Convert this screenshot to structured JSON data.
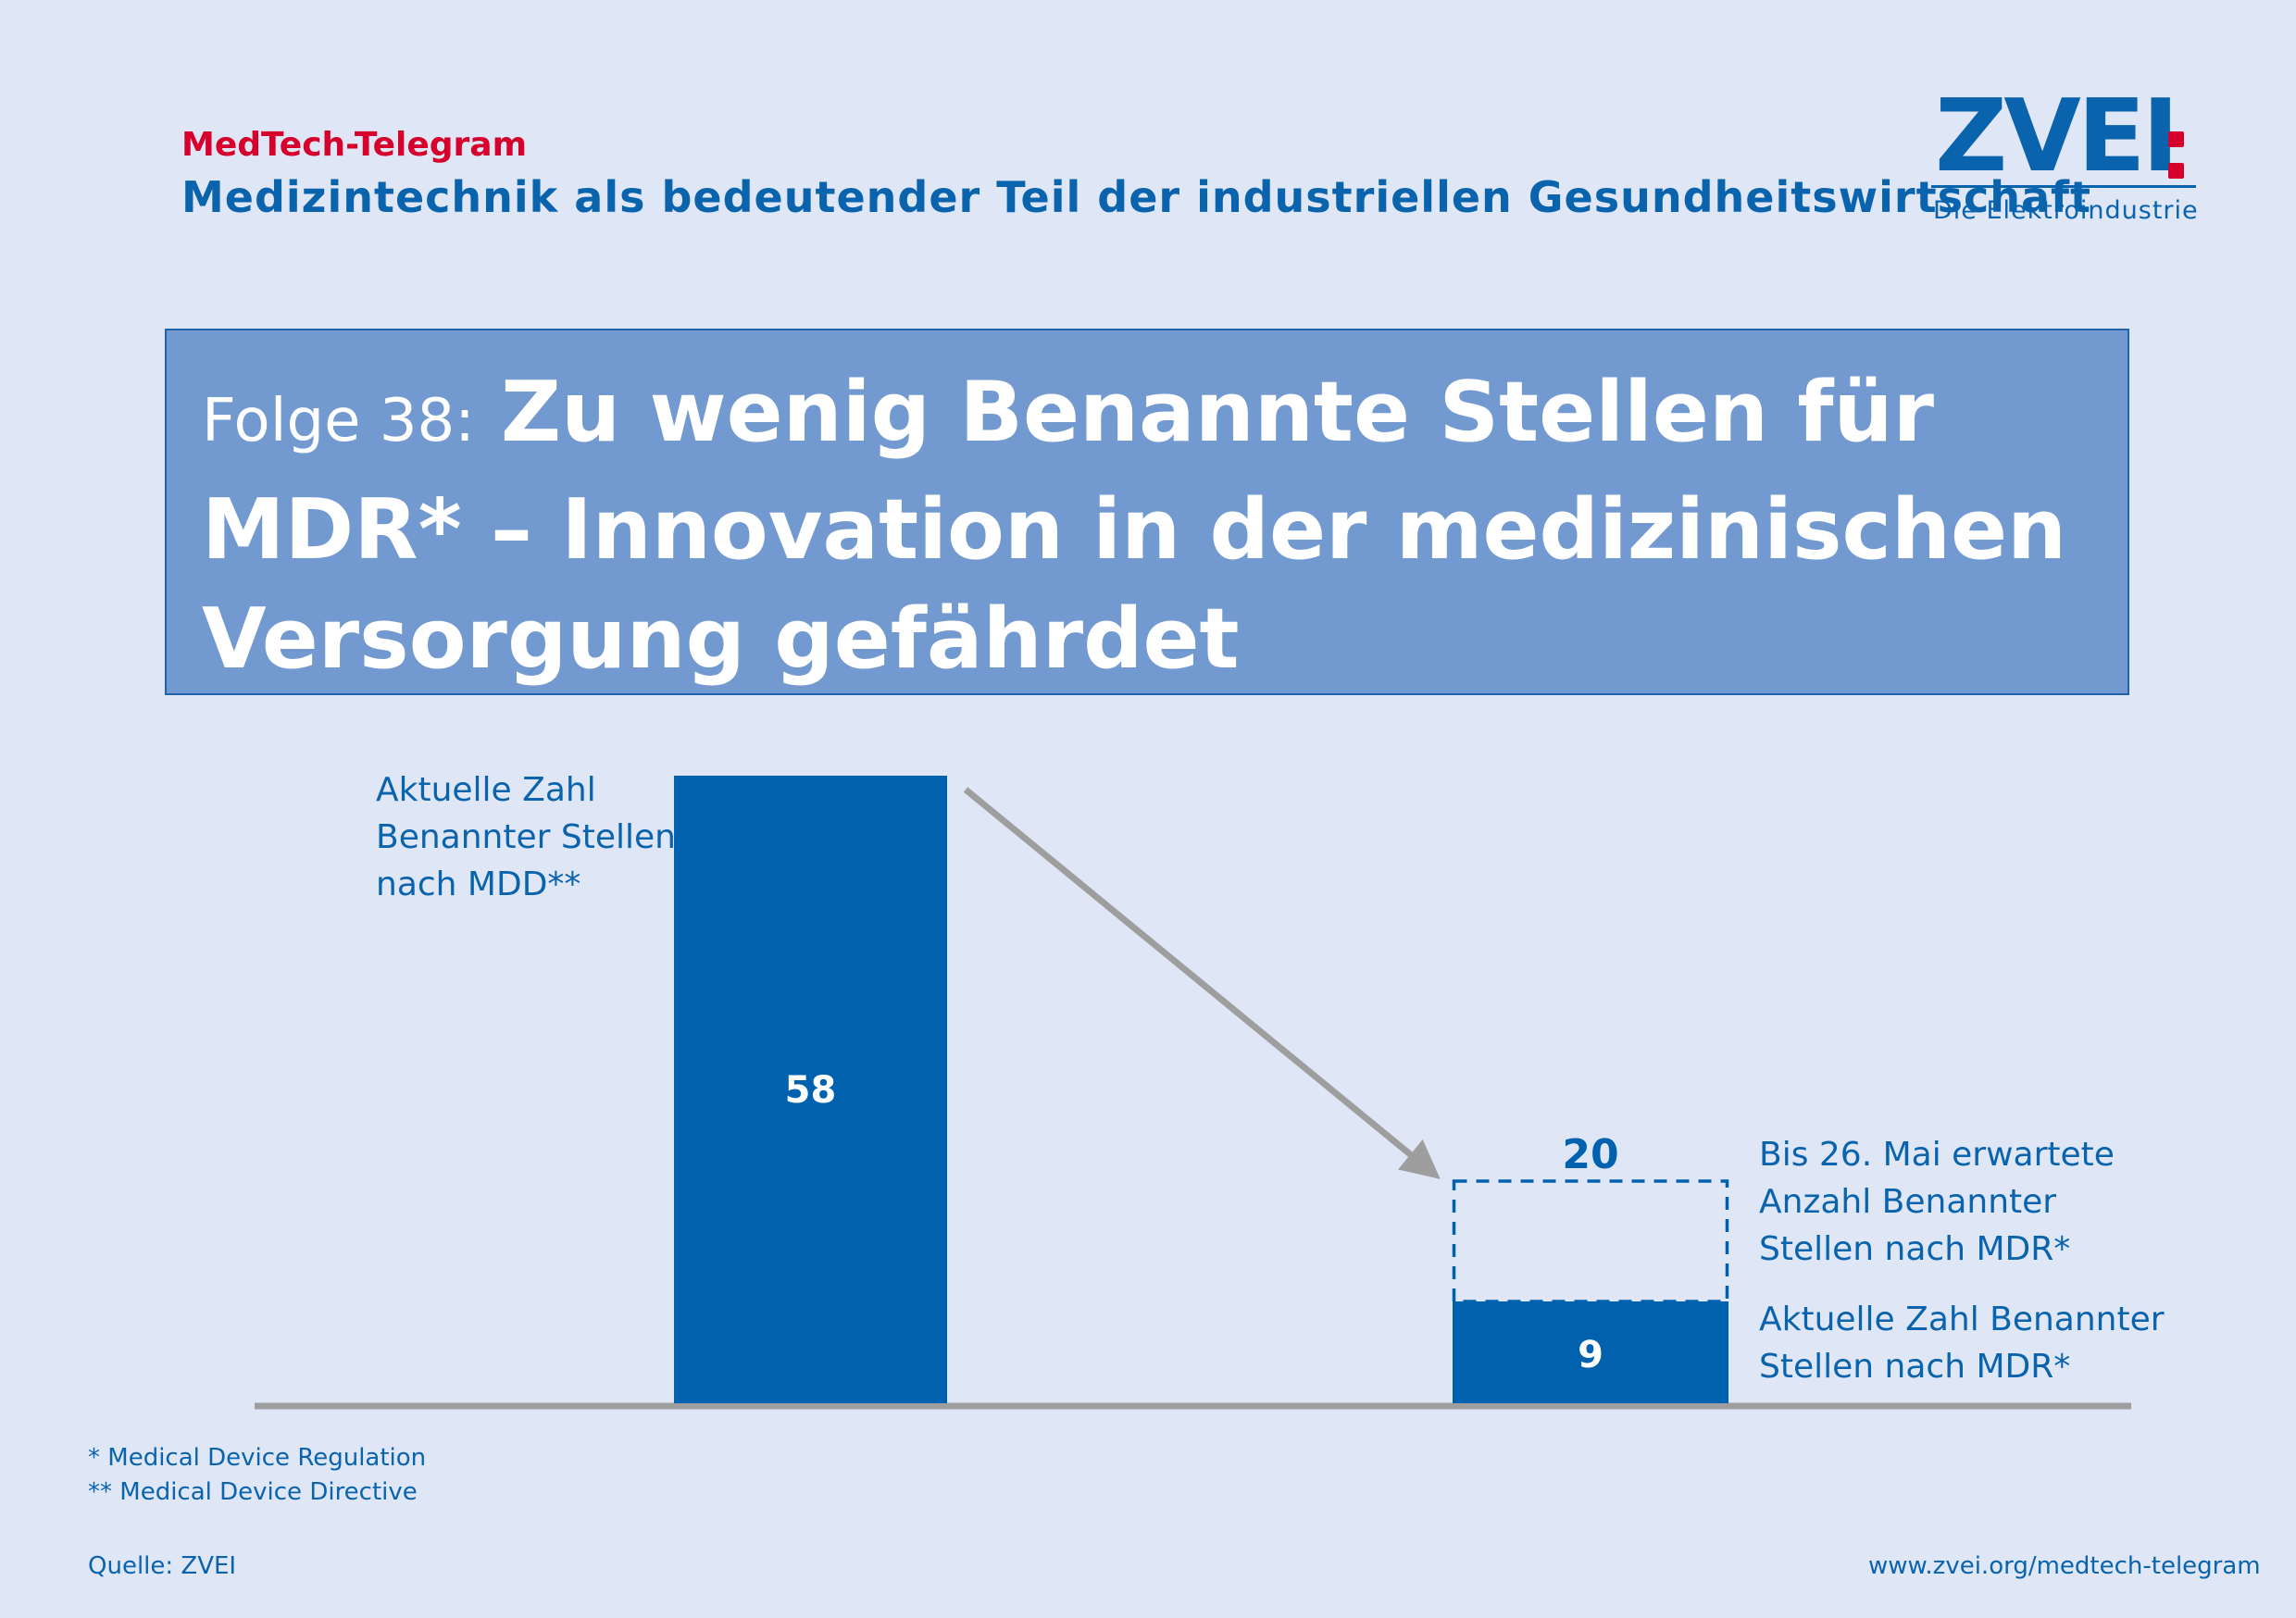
{
  "header": {
    "series_name": "MedTech-Telegram",
    "subtitle": "Medizintechnik als bedeutender Teil der industriellen Gesundheitswirtschaft"
  },
  "logo": {
    "word": "ZVEI",
    "tagline": "Die Elektroindustrie"
  },
  "title_box": {
    "episode": "Folge 38:",
    "headline": "Zu wenig Benannte Stellen für MDR* – Innovation in der medizinischen Versorgung gefährdet"
  },
  "colors": {
    "bar": "#0062ae",
    "title_box": "#7299d0",
    "accent_red": "#d5002b",
    "arrow": "#9e9e9e",
    "baseline": "#9e9e9e",
    "background": "#dfe6f5"
  },
  "chart_data": {
    "type": "bar",
    "title": "",
    "xlabel": "",
    "ylabel": "",
    "ylim": [
      0,
      58
    ],
    "grid": false,
    "bars": [
      {
        "label": "Aktuelle Zahl\nBenannter Stellen\nnach MDD**",
        "value": 58,
        "value_label": "58",
        "style": "solid"
      },
      {
        "label": "Aktuelle Zahl Benannter\nStellen nach MDR*",
        "value": 9,
        "value_label": "9",
        "style": "solid",
        "expected": {
          "label": "Bis 26. Mai erwartete\nAnzahl Benannter\nStellen nach MDR*",
          "value": 20,
          "value_label": "20",
          "style": "dashed"
        }
      }
    ],
    "annotations": [
      "arrow from first bar toward second bar indicating decline"
    ]
  },
  "footer": {
    "footnote_1": "* Medical Device Regulation",
    "footnote_2": "** Medical Device Directive",
    "source": "Quelle: ZVEI",
    "url": "www.zvei.org/medtech-telegram"
  }
}
